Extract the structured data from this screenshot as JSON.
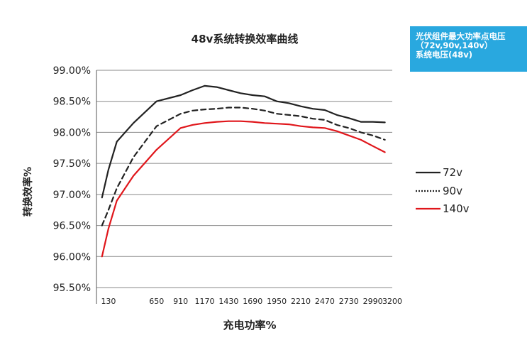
{
  "chart_data": {
    "type": "line",
    "title": "48v系统转换效率曲线",
    "xlabel": "充电功率%",
    "ylabel": "转换效率%",
    "x_ticks": [
      "130",
      "650",
      "910",
      "1170",
      "1430",
      "1690",
      "1950",
      "2210",
      "2470",
      "2730",
      "2990",
      "3200"
    ],
    "y_ticks": [
      "99.00%",
      "98.50%",
      "98.00%",
      "97.50%",
      "97.00%",
      "96.50%",
      "96.00%",
      "95.50%"
    ],
    "ylim": [
      95.5,
      99.0
    ],
    "xlim": [
      0,
      3200
    ],
    "grid": "horizontal",
    "legend_position": "right",
    "series": [
      {
        "name": "72v",
        "color": "#222222",
        "style": "solid",
        "x": [
          60,
          130,
          220,
          400,
          650,
          910,
          1040,
          1170,
          1300,
          1430,
          1560,
          1690,
          1820,
          1950,
          2080,
          2210,
          2340,
          2470,
          2600,
          2730,
          2860,
          2990,
          3120
        ],
        "y": [
          96.95,
          97.4,
          97.85,
          98.15,
          98.5,
          98.6,
          98.68,
          98.75,
          98.73,
          98.68,
          98.63,
          98.6,
          98.58,
          98.5,
          98.47,
          98.42,
          98.38,
          98.36,
          98.28,
          98.23,
          98.17,
          98.17,
          98.16
        ]
      },
      {
        "name": "90v",
        "color": "#222222",
        "style": "dashed",
        "x": [
          60,
          130,
          220,
          400,
          650,
          910,
          1040,
          1170,
          1300,
          1430,
          1560,
          1690,
          1820,
          1950,
          2080,
          2210,
          2340,
          2470,
          2600,
          2730,
          2860,
          2990,
          3120
        ],
        "y": [
          96.5,
          96.75,
          97.1,
          97.6,
          98.1,
          98.3,
          98.35,
          98.37,
          98.38,
          98.4,
          98.4,
          98.38,
          98.35,
          98.3,
          98.28,
          98.26,
          98.22,
          98.2,
          98.12,
          98.07,
          98.0,
          97.95,
          97.88
        ]
      },
      {
        "name": "140v",
        "color": "#e0161b",
        "style": "solid",
        "x": [
          60,
          130,
          220,
          400,
          650,
          910,
          1040,
          1170,
          1300,
          1430,
          1560,
          1690,
          1820,
          1950,
          2080,
          2210,
          2340,
          2470,
          2600,
          2730,
          2860,
          2990,
          3120
        ],
        "y": [
          96.0,
          96.45,
          96.9,
          97.3,
          97.72,
          98.07,
          98.12,
          98.15,
          98.17,
          98.18,
          98.18,
          98.17,
          98.15,
          98.14,
          98.13,
          98.1,
          98.08,
          98.07,
          98.02,
          97.95,
          97.88,
          97.78,
          97.68
        ]
      }
    ]
  },
  "info_box": {
    "line1": "光伏组件最大功率点电压",
    "line2": "（72v,90v,140v）",
    "line3": "系统电压(48v)",
    "color": "#29a8df"
  }
}
